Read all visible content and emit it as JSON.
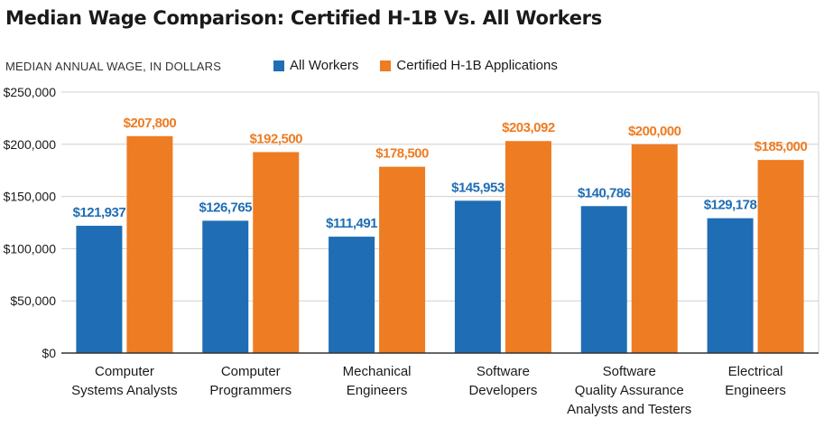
{
  "chart_data": {
    "type": "bar",
    "title": "Median Wage Comparison: Certified H-1B Vs. All Workers",
    "ylabel": "MEDIAN ANNUAL WAGE, IN DOLLARS",
    "xlabel": "",
    "ylim": [
      0,
      250000
    ],
    "yticks": [
      0,
      50000,
      100000,
      150000,
      200000,
      250000
    ],
    "ytick_labels": [
      "$0",
      "$50,000",
      "$100,000",
      "$150,000",
      "$200,000",
      "$250,000"
    ],
    "grid": true,
    "legend_position": "top",
    "categories": [
      [
        "Computer",
        "Systems Analysts"
      ],
      [
        "Computer",
        "Programmers"
      ],
      [
        "Mechanical",
        "Engineers"
      ],
      [
        "Software",
        "Developers"
      ],
      [
        "Software",
        "Quality Assurance",
        "Analysts and Testers"
      ],
      [
        "Electrical",
        "Engineers"
      ]
    ],
    "series": [
      {
        "name": "All Workers",
        "color": "#1f6db5",
        "values": [
          121937,
          126765,
          111491,
          145953,
          140786,
          129178
        ],
        "labels": [
          "$121,937",
          "$126,765",
          "$111,491",
          "$145,953",
          "$140,786",
          "$129,178"
        ]
      },
      {
        "name": "Certified H-1B Applications",
        "color": "#ee7c22",
        "values": [
          207800,
          192500,
          178500,
          203092,
          200000,
          185000
        ],
        "labels": [
          "$207,800",
          "$192,500",
          "$178,500",
          "$203,092",
          "$200,000",
          "$185,000"
        ]
      }
    ]
  }
}
